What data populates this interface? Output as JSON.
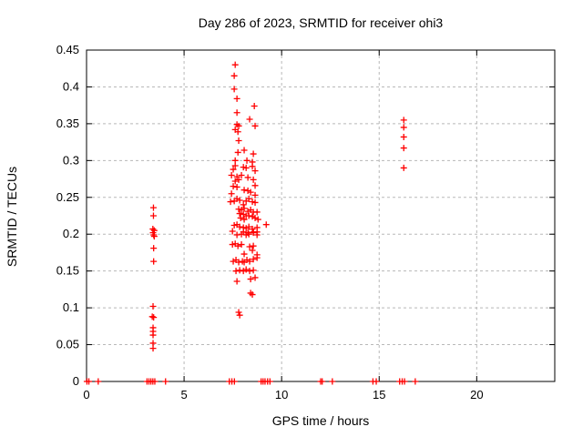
{
  "window": {
    "title": "Day 286 of 2023, SRMTID for receiver ohi3"
  },
  "chart_data": {
    "type": "scatter",
    "title": "Day 286 of 2023, SRMTID for receiver ohi3",
    "xlabel": "GPS time / hours",
    "ylabel": "SRMTID / TECUs",
    "xlim": [
      0,
      24
    ],
    "ylim": [
      0,
      0.45
    ],
    "grid": true,
    "legend_position": "none",
    "x_ticks": [
      {
        "v": 0,
        "label": "0"
      },
      {
        "v": 5,
        "label": "5"
      },
      {
        "v": 10,
        "label": "10"
      },
      {
        "v": 15,
        "label": "15"
      },
      {
        "v": 20,
        "label": "20"
      }
    ],
    "y_ticks": [
      {
        "v": 0,
        "label": "0"
      },
      {
        "v": 0.05,
        "label": "0.05"
      },
      {
        "v": 0.1,
        "label": "0.1"
      },
      {
        "v": 0.15,
        "label": "0.15"
      },
      {
        "v": 0.2,
        "label": "0.2"
      },
      {
        "v": 0.25,
        "label": "0.25"
      },
      {
        "v": 0.3,
        "label": "0.3"
      },
      {
        "v": 0.35,
        "label": "0.35"
      },
      {
        "v": 0.4,
        "label": "0.4"
      },
      {
        "v": 0.45,
        "label": "0.45"
      }
    ],
    "x_gridlines": [
      5,
      10,
      15,
      20
    ],
    "y_gridlines": [
      0.05,
      0.1,
      0.15,
      0.2,
      0.25,
      0.3,
      0.35,
      0.4
    ],
    "marker": {
      "shape": "plus",
      "color": "#ff0000",
      "size": 7
    },
    "series": [
      {
        "name": "SRMTID",
        "points": [
          [
            3.43,
            0.236
          ],
          [
            3.43,
            0.225
          ],
          [
            3.4,
            0.207
          ],
          [
            3.47,
            0.205
          ],
          [
            3.41,
            0.202
          ],
          [
            3.44,
            0.199
          ],
          [
            3.47,
            0.197
          ],
          [
            3.44,
            0.181
          ],
          [
            3.44,
            0.163
          ],
          [
            3.41,
            0.102
          ],
          [
            3.37,
            0.088
          ],
          [
            3.44,
            0.087
          ],
          [
            3.41,
            0.073
          ],
          [
            3.41,
            0.068
          ],
          [
            3.41,
            0.063
          ],
          [
            3.41,
            0.052
          ],
          [
            3.41,
            0.045
          ],
          [
            7.62,
            0.43
          ],
          [
            7.57,
            0.415
          ],
          [
            7.57,
            0.397
          ],
          [
            7.71,
            0.384
          ],
          [
            8.6,
            0.374
          ],
          [
            7.71,
            0.365
          ],
          [
            8.36,
            0.356
          ],
          [
            7.71,
            0.349
          ],
          [
            7.8,
            0.347
          ],
          [
            8.64,
            0.347
          ],
          [
            7.62,
            0.342
          ],
          [
            7.76,
            0.339
          ],
          [
            7.8,
            0.327
          ],
          [
            8.08,
            0.314
          ],
          [
            7.76,
            0.311
          ],
          [
            8.55,
            0.309
          ],
          [
            7.62,
            0.3
          ],
          [
            8.22,
            0.3
          ],
          [
            8.5,
            0.298
          ],
          [
            7.62,
            0.293
          ],
          [
            8.5,
            0.292
          ],
          [
            8.04,
            0.291
          ],
          [
            8.18,
            0.29
          ],
          [
            7.52,
            0.288
          ],
          [
            8.64,
            0.286
          ],
          [
            7.43,
            0.28
          ],
          [
            7.94,
            0.28
          ],
          [
            7.71,
            0.278
          ],
          [
            8.27,
            0.277
          ],
          [
            7.8,
            0.274
          ],
          [
            8.55,
            0.274
          ],
          [
            7.62,
            0.272
          ],
          [
            8.64,
            0.266
          ],
          [
            7.52,
            0.265
          ],
          [
            7.71,
            0.264
          ],
          [
            8.08,
            0.26
          ],
          [
            8.27,
            0.259
          ],
          [
            8.41,
            0.257
          ],
          [
            7.43,
            0.255
          ],
          [
            8.64,
            0.253
          ],
          [
            7.71,
            0.248
          ],
          [
            8.32,
            0.248
          ],
          [
            7.85,
            0.246
          ],
          [
            7.57,
            0.245
          ],
          [
            8.18,
            0.245
          ],
          [
            7.38,
            0.244
          ],
          [
            8.5,
            0.244
          ],
          [
            8.64,
            0.243
          ],
          [
            8.04,
            0.24
          ],
          [
            8.08,
            0.235
          ],
          [
            7.8,
            0.234
          ],
          [
            7.94,
            0.233
          ],
          [
            8.41,
            0.233
          ],
          [
            8.27,
            0.231
          ],
          [
            8.55,
            0.23
          ],
          [
            8.74,
            0.23
          ],
          [
            7.85,
            0.228
          ],
          [
            8.04,
            0.227
          ],
          [
            8.18,
            0.225
          ],
          [
            8.32,
            0.225
          ],
          [
            8.5,
            0.224
          ],
          [
            7.9,
            0.222
          ],
          [
            8.64,
            0.222
          ],
          [
            8.08,
            0.22
          ],
          [
            8.79,
            0.22
          ],
          [
            9.21,
            0.213
          ],
          [
            7.71,
            0.213
          ],
          [
            7.57,
            0.212
          ],
          [
            7.85,
            0.21
          ],
          [
            8.32,
            0.21
          ],
          [
            8.04,
            0.209
          ],
          [
            8.74,
            0.209
          ],
          [
            8.18,
            0.208
          ],
          [
            8.5,
            0.207
          ],
          [
            7.48,
            0.204
          ],
          [
            8.04,
            0.203
          ],
          [
            8.55,
            0.203
          ],
          [
            8.74,
            0.203
          ],
          [
            8.27,
            0.202
          ],
          [
            8.55,
            0.202
          ],
          [
            7.94,
            0.2
          ],
          [
            8.32,
            0.2
          ],
          [
            7.71,
            0.199
          ],
          [
            8.18,
            0.199
          ],
          [
            8.74,
            0.199
          ],
          [
            7.48,
            0.186
          ],
          [
            7.94,
            0.186
          ],
          [
            7.62,
            0.187
          ],
          [
            7.76,
            0.184
          ],
          [
            8.55,
            0.184
          ],
          [
            8.36,
            0.183
          ],
          [
            8.5,
            0.178
          ],
          [
            8.08,
            0.173
          ],
          [
            8.74,
            0.172
          ],
          [
            8.74,
            0.168
          ],
          [
            8.55,
            0.166
          ],
          [
            7.66,
            0.165
          ],
          [
            8.22,
            0.165
          ],
          [
            7.52,
            0.163
          ],
          [
            7.99,
            0.163
          ],
          [
            8.36,
            0.163
          ],
          [
            7.8,
            0.162
          ],
          [
            8.08,
            0.162
          ],
          [
            8.18,
            0.152
          ],
          [
            7.85,
            0.151
          ],
          [
            8.55,
            0.151
          ],
          [
            7.66,
            0.15
          ],
          [
            8.04,
            0.15
          ],
          [
            8.36,
            0.15
          ],
          [
            8.64,
            0.141
          ],
          [
            8.41,
            0.139
          ],
          [
            7.71,
            0.136
          ],
          [
            8.41,
            0.12
          ],
          [
            8.5,
            0.118
          ],
          [
            7.8,
            0.094
          ],
          [
            7.85,
            0.09
          ],
          [
            16.26,
            0.355
          ],
          [
            16.26,
            0.345
          ],
          [
            16.26,
            0.332
          ],
          [
            16.26,
            0.317
          ],
          [
            16.26,
            0.29
          ],
          [
            0.02,
            0
          ],
          [
            0.12,
            0
          ],
          [
            0.6,
            0
          ],
          [
            3.1,
            0
          ],
          [
            3.2,
            0
          ],
          [
            3.3,
            0
          ],
          [
            3.4,
            0
          ],
          [
            3.5,
            0
          ],
          [
            4.05,
            0
          ],
          [
            7.32,
            0
          ],
          [
            7.45,
            0
          ],
          [
            7.58,
            0
          ],
          [
            8.95,
            0
          ],
          [
            9.05,
            0
          ],
          [
            9.15,
            0
          ],
          [
            9.28,
            0
          ],
          [
            9.4,
            0
          ],
          [
            12.0,
            0
          ],
          [
            12.08,
            0
          ],
          [
            12.6,
            0
          ],
          [
            14.68,
            0
          ],
          [
            14.85,
            0
          ],
          [
            16.05,
            0
          ],
          [
            16.18,
            0
          ],
          [
            16.3,
            0
          ],
          [
            16.85,
            0
          ]
        ]
      }
    ]
  },
  "colors": {
    "background": "#ffffff",
    "grid": "#b8b8b8",
    "axis": "#000000",
    "marker": "#ff0000"
  }
}
